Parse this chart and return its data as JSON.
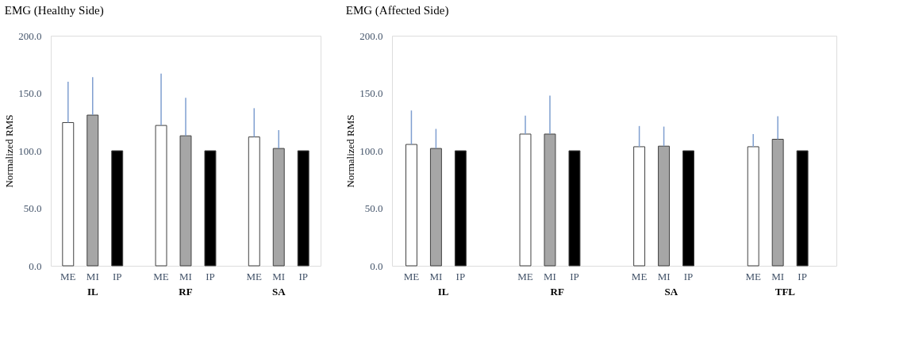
{
  "chart_data": [
    {
      "type": "bar",
      "title": "EMG (Healthy Side)",
      "ylabel": "Normalized RMS",
      "categories": [
        "IL",
        "RF",
        "SA"
      ],
      "ylim": [
        0,
        200
      ],
      "yticks": [
        {
          "value": 0,
          "label": "0.0"
        },
        {
          "value": 50,
          "label": "50.0"
        },
        {
          "value": 100,
          "label": "100.0"
        },
        {
          "value": 150,
          "label": "150.0"
        },
        {
          "value": 200,
          "label": "200.0"
        }
      ],
      "grid": false,
      "legend": false,
      "series": [
        {
          "name": "ME",
          "color": "#ffffff",
          "values": [
            124.5,
            122,
            112
          ],
          "errors": [
            [
              124.5,
              160
            ],
            [
              122,
              167
            ],
            [
              112,
              137
            ]
          ]
        },
        {
          "name": "MI",
          "color": "#a6a6a6",
          "values": [
            131,
            113,
            102
          ],
          "errors": [
            [
              131,
              164
            ],
            [
              113,
              146
            ],
            [
              102,
              118
            ]
          ]
        },
        {
          "name": "IP",
          "color": "#000000",
          "values": [
            100,
            100,
            100
          ],
          "errors": [
            null,
            null,
            null
          ]
        }
      ]
    },
    {
      "type": "bar",
      "title": "EMG (Affected Side)",
      "ylabel": "Normalized RMS",
      "categories": [
        "IL",
        "RF",
        "SA",
        "TFL"
      ],
      "ylim": [
        0,
        200
      ],
      "yticks": [
        {
          "value": 0,
          "label": "0.0"
        },
        {
          "value": 50,
          "label": "50.0"
        },
        {
          "value": 100,
          "label": "100.0"
        },
        {
          "value": 150,
          "label": "150.0"
        },
        {
          "value": 200,
          "label": "200.0"
        }
      ],
      "grid": false,
      "legend": false,
      "series": [
        {
          "name": "ME",
          "color": "#ffffff",
          "values": [
            105.5,
            114.5,
            103.5,
            103.5
          ],
          "errors": [
            [
              105.5,
              135
            ],
            [
              114.5,
              130.5
            ],
            [
              103.5,
              121.5
            ],
            [
              103.5,
              114.5
            ]
          ]
        },
        {
          "name": "MI",
          "color": "#a6a6a6",
          "values": [
            102,
            114.5,
            104,
            110
          ],
          "errors": [
            [
              102,
              119
            ],
            [
              114.5,
              148
            ],
            [
              104,
              121
            ],
            [
              110,
              130
            ]
          ]
        },
        {
          "name": "IP",
          "color": "#000000",
          "values": [
            100,
            100,
            100,
            100
          ],
          "errors": [
            null,
            null,
            null,
            null
          ]
        }
      ]
    }
  ]
}
